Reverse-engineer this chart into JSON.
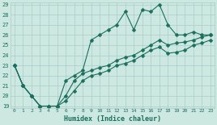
{
  "xlabel": "Humidex (Indice chaleur)",
  "background_color": "#cce8e0",
  "grid_color": "#aacccc",
  "line_color": "#1a6e5e",
  "x_values": [
    0,
    1,
    2,
    3,
    4,
    5,
    6,
    7,
    8,
    9,
    10,
    11,
    12,
    13,
    14,
    15,
    16,
    17,
    18,
    19,
    20,
    21,
    22,
    23
  ],
  "line1": [
    23,
    21,
    20,
    19,
    19,
    19,
    21.5,
    22,
    22.5,
    25.5,
    26,
    26.5,
    27,
    28.3,
    26.5,
    28.5,
    28.3,
    29,
    27,
    26,
    26,
    26.3,
    26,
    26
  ],
  "line2": [
    23,
    21,
    20,
    19,
    19,
    19,
    20,
    21.5,
    22.2,
    22.5,
    22.8,
    23,
    23.5,
    23.8,
    24,
    24.5,
    25,
    25.5,
    25,
    25.2,
    25.3,
    25.5,
    25.8,
    26
  ],
  "line3": [
    23,
    21,
    20,
    19,
    19,
    19,
    19.5,
    20.5,
    21.5,
    22,
    22.2,
    22.5,
    23,
    23.2,
    23.5,
    24,
    24.5,
    24.8,
    24.2,
    24.3,
    24.5,
    25,
    25.2,
    25.5
  ],
  "ylim": [
    19,
    29
  ],
  "xlim": [
    -0.5,
    23.5
  ],
  "yticks": [
    19,
    20,
    21,
    22,
    23,
    24,
    25,
    26,
    27,
    28,
    29
  ],
  "xticks": [
    0,
    1,
    2,
    3,
    4,
    5,
    6,
    7,
    8,
    9,
    10,
    11,
    12,
    13,
    14,
    15,
    16,
    17,
    18,
    19,
    20,
    21,
    22,
    23
  ],
  "markersize": 2.5,
  "linewidth": 0.8
}
